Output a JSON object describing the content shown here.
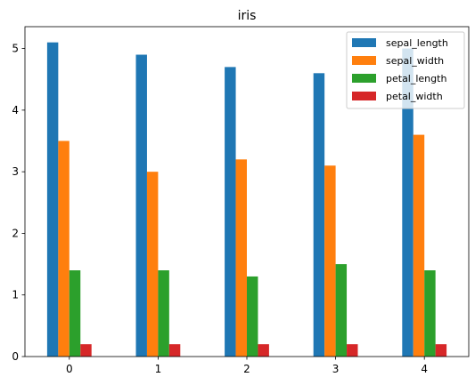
{
  "chart_data": {
    "type": "bar",
    "title": "iris",
    "xlabel": "",
    "ylabel": "",
    "categories": [
      "0",
      "1",
      "2",
      "3",
      "4"
    ],
    "series": [
      {
        "name": "sepal_length",
        "color": "#1f77b4",
        "values": [
          5.1,
          4.9,
          4.7,
          4.6,
          5.0
        ]
      },
      {
        "name": "sepal_width",
        "color": "#ff7f0e",
        "values": [
          3.5,
          3.0,
          3.2,
          3.1,
          3.6
        ]
      },
      {
        "name": "petal_length",
        "color": "#2ca02c",
        "values": [
          1.4,
          1.4,
          1.3,
          1.5,
          1.4
        ]
      },
      {
        "name": "petal_width",
        "color": "#d62728",
        "values": [
          0.2,
          0.2,
          0.2,
          0.2,
          0.2
        ]
      }
    ],
    "ylim": [
      0,
      5.355
    ],
    "yticks": [
      0,
      1,
      2,
      3,
      4,
      5
    ],
    "grid": false,
    "legend": "top-right"
  }
}
